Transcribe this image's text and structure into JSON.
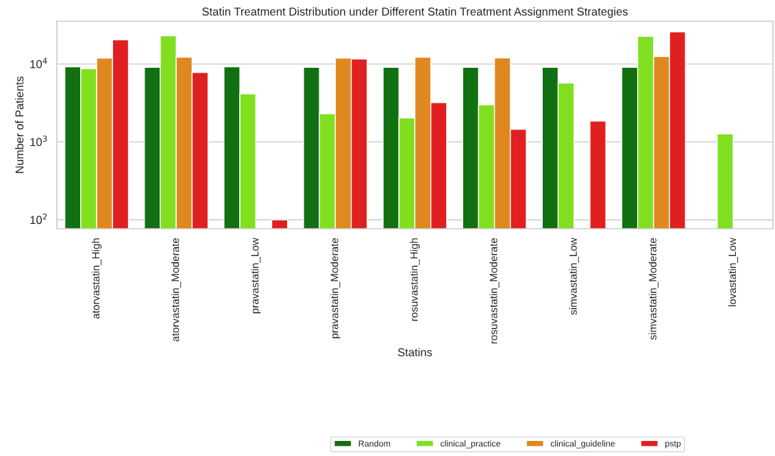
{
  "chart_data": {
    "type": "bar",
    "title": "Statin Treatment Distribution under Different Statin Treatment Assignment Strategies",
    "xlabel": "Statins",
    "ylabel": "Number of Patients",
    "categories": [
      "atorvastatin_High",
      "atorvastatin_Moderate",
      "pravastatin_Low",
      "pravastatin_Moderate",
      "rosuvastatin_High",
      "rosuvastatin_Moderate",
      "simvastatin_Low",
      "simvastatin_Moderate",
      "lovastatin_Low"
    ],
    "series": [
      {
        "name": "Random",
        "color": "#117011",
        "values": [
          9200,
          9050,
          9200,
          9050,
          9050,
          9050,
          9050,
          9050,
          null
        ]
      },
      {
        "name": "clinical_practice",
        "color": "#80e020",
        "values": [
          8700,
          23000,
          4150,
          2300,
          2030,
          3000,
          5700,
          22700,
          1270
        ]
      },
      {
        "name": "clinical_guideline",
        "color": "#e08820",
        "values": [
          11900,
          12200,
          null,
          11900,
          12200,
          12000,
          null,
          12500,
          null
        ]
      },
      {
        "name": "pstp",
        "color": "#e02020",
        "values": [
          20500,
          7800,
          100,
          11600,
          3200,
          1450,
          1850,
          25900,
          null
        ]
      }
    ],
    "log": "y",
    "ylim": [
      77,
      35400
    ],
    "yticks": [
      {
        "value": 100,
        "label": "10$^{2}$"
      },
      {
        "value": 1000,
        "label": "10$^{3}$"
      },
      {
        "value": 10000,
        "label": "10$^{4}$"
      }
    ],
    "grid": "y",
    "legend": "bottom"
  }
}
